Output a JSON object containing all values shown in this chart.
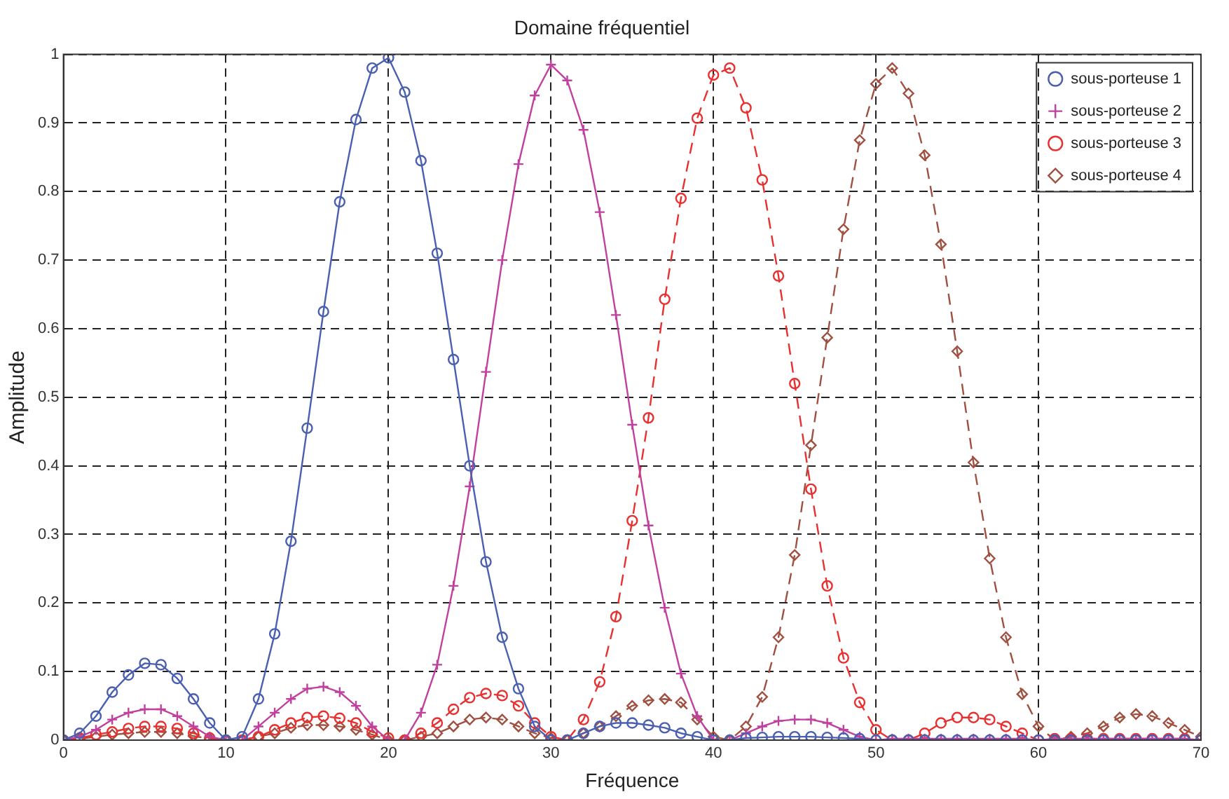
{
  "chart_data": {
    "type": "line",
    "title": "Domaine fréquentiel",
    "xlabel": "Fréquence",
    "ylabel": "Amplitude",
    "x": [
      0,
      1,
      2,
      3,
      4,
      5,
      6,
      7,
      8,
      9,
      10,
      11,
      12,
      13,
      14,
      15,
      16,
      17,
      18,
      19,
      20,
      21,
      22,
      23,
      24,
      25,
      26,
      27,
      28,
      29,
      30,
      31,
      32,
      33,
      34,
      35,
      36,
      37,
      38,
      39,
      40,
      41,
      42,
      43,
      44,
      45,
      46,
      47,
      48,
      49,
      50,
      51,
      52,
      53,
      54,
      55,
      56,
      57,
      58,
      59,
      60,
      61,
      62,
      63,
      64,
      65,
      66,
      67,
      68,
      69,
      70
    ],
    "xlim": [
      0,
      70
    ],
    "xticks": [
      0,
      10,
      20,
      30,
      40,
      50,
      60,
      70
    ],
    "ylim": [
      0,
      1
    ],
    "yticks": [
      0,
      0.1,
      0.2,
      0.3,
      0.4,
      0.5,
      0.6,
      0.7,
      0.8,
      0.9,
      1
    ],
    "grid": true,
    "legend": "top right",
    "series": [
      {
        "name": "sous-porteuse 1",
        "color": "#4a5fb0",
        "marker": "circle",
        "line_style": "solid",
        "values": [
          0,
          0.01,
          0.035,
          0.07,
          0.095,
          0.112,
          0.11,
          0.09,
          0.06,
          0.025,
          0,
          0.005,
          0.06,
          0.155,
          0.29,
          0.455,
          0.625,
          0.785,
          0.905,
          0.98,
          0.995,
          0.945,
          0.845,
          0.71,
          0.555,
          0.4,
          0.26,
          0.15,
          0.075,
          0.02,
          0,
          0,
          0.01,
          0.02,
          0.025,
          0.025,
          0.022,
          0.018,
          0.01,
          0.005,
          0,
          0,
          0.003,
          0.004,
          0.005,
          0.005,
          0.005,
          0.004,
          0.003,
          0.002,
          0,
          0,
          0,
          0,
          0,
          0,
          0,
          0,
          0,
          0,
          0,
          0,
          0,
          0,
          0,
          0,
          0,
          0,
          0,
          0,
          0
        ]
      },
      {
        "name": "sous-porteuse 2",
        "color": "#c040a0",
        "marker": "cross",
        "line_style": "solid",
        "values": [
          0,
          0.005,
          0.015,
          0.03,
          0.04,
          0.045,
          0.045,
          0.035,
          0.02,
          0.005,
          0,
          0,
          0.02,
          0.04,
          0.06,
          0.075,
          0.078,
          0.07,
          0.05,
          0.02,
          0,
          0,
          0.04,
          0.11,
          0.225,
          0.37,
          0.537,
          0.7,
          0.84,
          0.94,
          0.985,
          0.962,
          0.89,
          0.77,
          0.62,
          0.46,
          0.313,
          0.193,
          0.097,
          0.035,
          0,
          0,
          0.01,
          0.02,
          0.028,
          0.03,
          0.03,
          0.025,
          0.015,
          0.005,
          0,
          0.002,
          0.002,
          0.002,
          0.002,
          0.002,
          0.002,
          0.002,
          0.002,
          0.002,
          0,
          0.002,
          0.002,
          0.002,
          0.002,
          0.002,
          0.002,
          0.002,
          0.002,
          0.002,
          0
        ]
      },
      {
        "name": "sous-porteuse 3",
        "color": "#e83030",
        "marker": "circle",
        "line_style": "dashed",
        "values": [
          0,
          0.003,
          0.008,
          0.012,
          0.017,
          0.02,
          0.02,
          0.017,
          0.01,
          0.003,
          0,
          0,
          0.005,
          0.015,
          0.025,
          0.033,
          0.035,
          0.032,
          0.025,
          0.012,
          0.003,
          0,
          0.01,
          0.025,
          0.045,
          0.062,
          0.068,
          0.065,
          0.05,
          0.025,
          0.005,
          0,
          0.03,
          0.085,
          0.18,
          0.32,
          0.47,
          0.643,
          0.79,
          0.907,
          0.97,
          0.98,
          0.922,
          0.817,
          0.677,
          0.52,
          0.366,
          0.225,
          0.12,
          0.055,
          0.015,
          0,
          0,
          0.01,
          0.025,
          0.033,
          0.033,
          0.03,
          0.02,
          0.01,
          0,
          0.002,
          0.002,
          0.002,
          0.002,
          0.002,
          0.002,
          0.002,
          0.002,
          0.002,
          0
        ]
      },
      {
        "name": "sous-porteuse 4",
        "color": "#a05040",
        "marker": "diamond",
        "line_style": "dashed",
        "values": [
          0,
          0.002,
          0.005,
          0.008,
          0.01,
          0.012,
          0.012,
          0.01,
          0.006,
          0.002,
          0,
          0,
          0.005,
          0.01,
          0.018,
          0.022,
          0.022,
          0.02,
          0.015,
          0.008,
          0,
          0,
          0.005,
          0.01,
          0.02,
          0.03,
          0.033,
          0.03,
          0.02,
          0.01,
          0.003,
          0,
          0.01,
          0.02,
          0.035,
          0.05,
          0.058,
          0.06,
          0.055,
          0.03,
          0.005,
          0,
          0.02,
          0.063,
          0.15,
          0.27,
          0.43,
          0.587,
          0.745,
          0.875,
          0.957,
          0.98,
          0.943,
          0.853,
          0.723,
          0.567,
          0.405,
          0.265,
          0.15,
          0.067,
          0.02,
          0,
          0.005,
          0.01,
          0.02,
          0.033,
          0.038,
          0.035,
          0.025,
          0.015,
          0.005
        ]
      }
    ]
  }
}
